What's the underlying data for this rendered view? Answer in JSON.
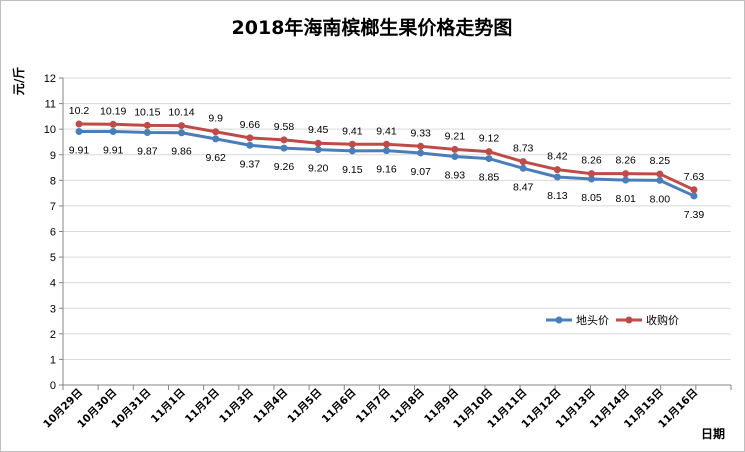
{
  "chart_data": {
    "type": "line",
    "title": "2018年海南槟榔生果价格走势图",
    "ylabel": "元/斤",
    "xlabel": "日期",
    "ylim": [
      0,
      12
    ],
    "yticks": [
      0,
      1,
      2,
      3,
      4,
      5,
      6,
      7,
      8,
      9,
      10,
      11,
      12
    ],
    "grid": true,
    "legend_position": "right",
    "categories": [
      "10月29日",
      "10月30日",
      "10月31日",
      "11月1日",
      "11月2日",
      "11月3日",
      "11月4日",
      "11月5日",
      "11月6日",
      "11月7日",
      "11月8日",
      "11月9日",
      "11月10日",
      "11月11日",
      "11月12日",
      "11月13日",
      "11月14日",
      "11月15日",
      "11月16日"
    ],
    "series": [
      {
        "name": "地头价",
        "color": "#4a7ebb",
        "values": [
          9.91,
          9.91,
          9.87,
          9.86,
          9.62,
          9.37,
          9.26,
          9.2,
          9.15,
          9.16,
          9.07,
          8.93,
          8.85,
          8.47,
          8.13,
          8.05,
          8.01,
          8.0,
          7.39
        ],
        "labels": [
          "9.91",
          "9.91",
          "9.87",
          "9.86",
          "9.62",
          "9.37",
          "9.26",
          "9.20",
          "9.15",
          "9.16",
          "9.07",
          "8.93",
          "8.85",
          "8.47",
          "8.13",
          "8.05",
          "8.01",
          "8.00",
          "7.39"
        ]
      },
      {
        "name": "收购价",
        "color": "#be4b48",
        "values": [
          10.2,
          10.19,
          10.15,
          10.14,
          9.9,
          9.66,
          9.58,
          9.45,
          9.41,
          9.41,
          9.33,
          9.21,
          9.12,
          8.73,
          8.42,
          8.26,
          8.26,
          8.25,
          7.63
        ],
        "labels": [
          "10.2",
          "10.19",
          "10.15",
          "10.14",
          "9.9",
          "9.66",
          "9.58",
          "9.45",
          "9.41",
          "9.41",
          "9.33",
          "9.21",
          "9.12",
          "8.73",
          "8.42",
          "8.26",
          "8.26",
          "8.25",
          "7.63"
        ]
      }
    ]
  }
}
